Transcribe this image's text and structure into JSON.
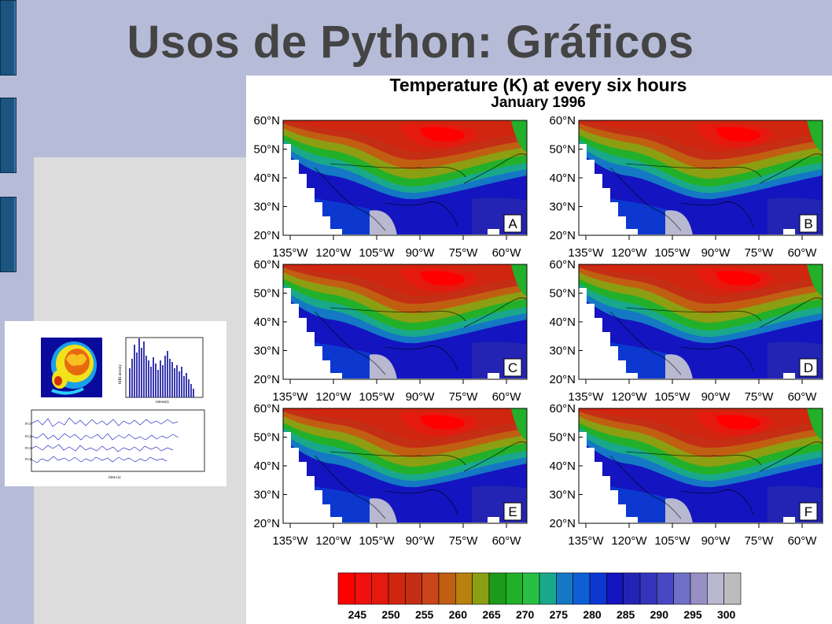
{
  "slide": {
    "title": "Usos de Python: Gráficos"
  },
  "thumbnail": {
    "histogram_ylabel": "MRI density",
    "histogram_xlabel": "intensity",
    "eeg_xlabel": "time (s)",
    "eeg_channels": [
      "PG1",
      "PG2",
      "PG3",
      "PG4"
    ]
  },
  "figure": {
    "title": "Temperature (K) at every six hours",
    "subtitle": "January 1996",
    "panels": [
      "A",
      "B",
      "C",
      "D",
      "E",
      "F"
    ],
    "lat_labels": [
      "60°N",
      "50°N",
      "40°N",
      "30°N",
      "20°N"
    ],
    "lon_labels": [
      "135°W",
      "120°W",
      "105°W",
      "90°W",
      "75°W",
      "60°W"
    ],
    "colorbar": {
      "labels": [
        "245",
        "250",
        "255",
        "260",
        "265",
        "270",
        "275",
        "280",
        "285",
        "290",
        "295",
        "300"
      ],
      "colors": [
        "#ff0000",
        "#f01010",
        "#e41a0e",
        "#d0260f",
        "#c42e14",
        "#c8461a",
        "#c05f12",
        "#b8800c",
        "#8c9e12",
        "#1e9a1a",
        "#22b02a",
        "#28c044",
        "#1aa88c",
        "#1478c4",
        "#0e5ed8",
        "#0c38d0",
        "#1414c0",
        "#2424b4",
        "#3434bc",
        "#4848c4",
        "#7070c8",
        "#9890c4",
        "#b8b8d0",
        "#bcbcbc"
      ]
    }
  }
}
